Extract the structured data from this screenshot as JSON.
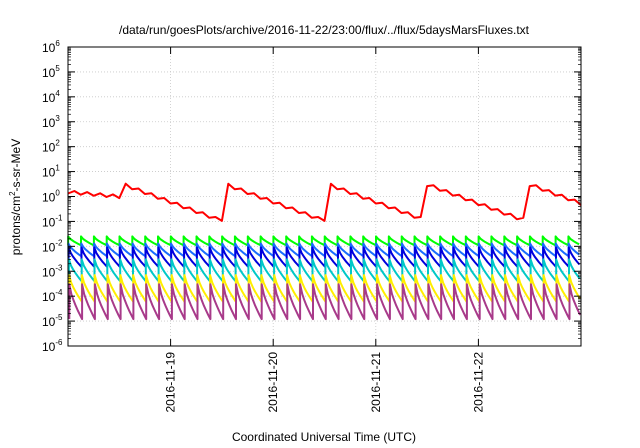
{
  "chart_data": {
    "type": "line",
    "title": "/data/run/goesPlots/archive/2016-11-22/23:00/flux/../flux/5daysMarsFluxes.txt",
    "xlabel": "Coordinated Universal Time (UTC)",
    "ylabel": "protons/cm²-s-sr-MeV",
    "ylabel_parts": {
      "pre": "protons/cm",
      "sup": "2",
      "post": "-s-sr-MeV"
    },
    "yscale": "log",
    "ylim_exponent": [
      -6,
      6
    ],
    "ytick_base": "10",
    "ytick_exponents": [
      "-6",
      "-5",
      "-4",
      "-3",
      "-2",
      "-1",
      "0",
      "1",
      "2",
      "3",
      "4",
      "5",
      "6"
    ],
    "xlim": [
      "2016-11-18T00:00",
      "2016-11-23T00:00"
    ],
    "xticks": [
      "2016-11-19",
      "2016-11-20",
      "2016-11-21",
      "2016-11-22"
    ],
    "grid": true,
    "sawtooth_period_hours": 3,
    "series": [
      {
        "color": "#ff0000",
        "kind": "slow-decay",
        "ymax": 3.5,
        "ymin": 0.14
      },
      {
        "color": "#00ff00",
        "kind": "sawtooth",
        "ymax": 0.025,
        "ymin": 0.011
      },
      {
        "color": "#1a6cff",
        "kind": "sawtooth",
        "ymax": 0.013,
        "ymin": 0.004
      },
      {
        "color": "#0000dd",
        "kind": "sawtooth",
        "ymax": 0.009,
        "ymin": 0.0015
      },
      {
        "color": "#00c8c8",
        "kind": "sawtooth",
        "ymax": 0.003,
        "ymin": 0.0004
      },
      {
        "color": "#ffee00",
        "kind": "sawtooth",
        "ymax": 0.0007,
        "ymin": 6e-05
      },
      {
        "color": "#a83a8a",
        "kind": "sawtooth",
        "ymax": 0.0003,
        "ymin": 1.2e-05
      }
    ]
  }
}
